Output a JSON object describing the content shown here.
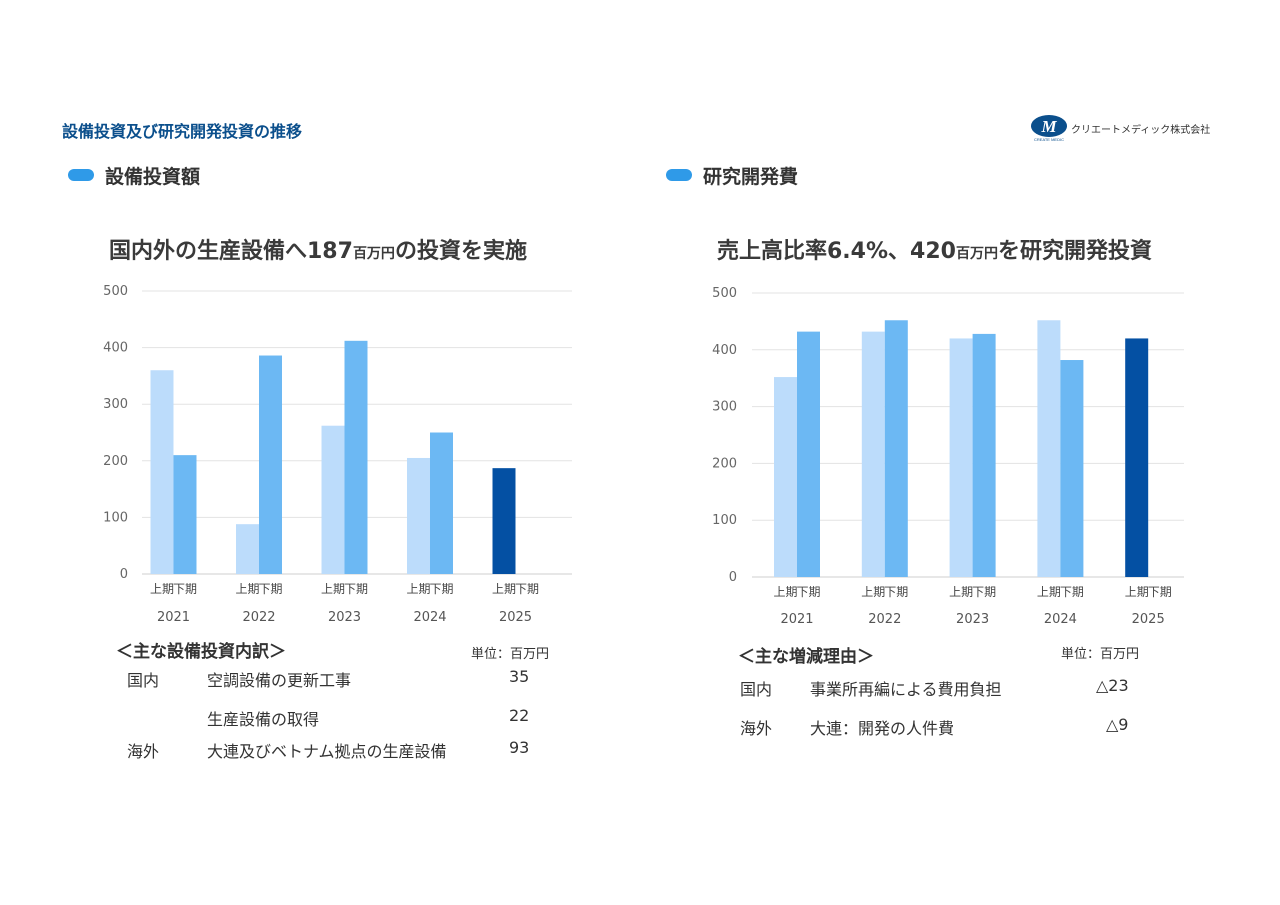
{
  "page_title": "設備投資及び研究開発投資の推移",
  "logo": {
    "mark": "M",
    "mark_sub": "CREATE MEDIC",
    "company": "クリエートメディック株式会社"
  },
  "colors": {
    "first_half": "#bcdcfb",
    "second_half": "#6cb8f3",
    "highlight": "#0450a3",
    "pill": "#2f9ae8",
    "title": "#0b4f8c"
  },
  "left": {
    "section": "設備投資額",
    "headline_pre": "国内外の生産設備へ187",
    "headline_unit": "百万円",
    "headline_post": "の投資を実施",
    "breakdown_title": "＜主な設備投資内訳＞",
    "unit": "単位：百万円",
    "rows": [
      {
        "region": "国内",
        "item": "空調設備の更新工事",
        "value": "35"
      },
      {
        "region": "",
        "item": "生産設備の取得",
        "value": "22"
      },
      {
        "region": "海外",
        "item": "大連及びベトナム拠点の生産設備",
        "value": "93"
      }
    ]
  },
  "right": {
    "section": "研究開発費",
    "headline_pre": "売上高比率6.4%、420",
    "headline_unit": "百万円",
    "headline_post": "を研究開発投資",
    "breakdown_title": "＜主な増減理由＞",
    "unit": "単位：百万円",
    "rows": [
      {
        "region": "国内",
        "item": "事業所再編による費用負担",
        "value": "△23"
      },
      {
        "region": "海外",
        "item": "大連：開発の人件費",
        "value": "△9"
      }
    ]
  },
  "chart_data": [
    {
      "type": "bar",
      "title": "",
      "categories": [
        "2021",
        "2022",
        "2023",
        "2024",
        "2025"
      ],
      "sub_labels": [
        "上期",
        "下期"
      ],
      "series": [
        {
          "values": [
            360,
            88,
            262,
            205,
            187
          ]
        },
        {
          "values": [
            210,
            386,
            412,
            250,
            null
          ]
        }
      ],
      "highlight": {
        "category": "2025",
        "sub": "上期"
      },
      "ylim": [
        0,
        500
      ],
      "yticks": [
        0,
        100,
        200,
        300,
        400,
        500
      ],
      "grid": true
    },
    {
      "type": "bar",
      "title": "",
      "categories": [
        "2021",
        "2022",
        "2023",
        "2024",
        "2025"
      ],
      "sub_labels": [
        "上期",
        "下期"
      ],
      "series": [
        {
          "values": [
            352,
            432,
            420,
            452,
            420
          ]
        },
        {
          "values": [
            432,
            452,
            428,
            382,
            null
          ]
        }
      ],
      "highlight": {
        "category": "2025",
        "sub": "上期"
      },
      "ylim": [
        0,
        500
      ],
      "yticks": [
        0,
        100,
        200,
        300,
        400,
        500
      ],
      "grid": true
    }
  ]
}
